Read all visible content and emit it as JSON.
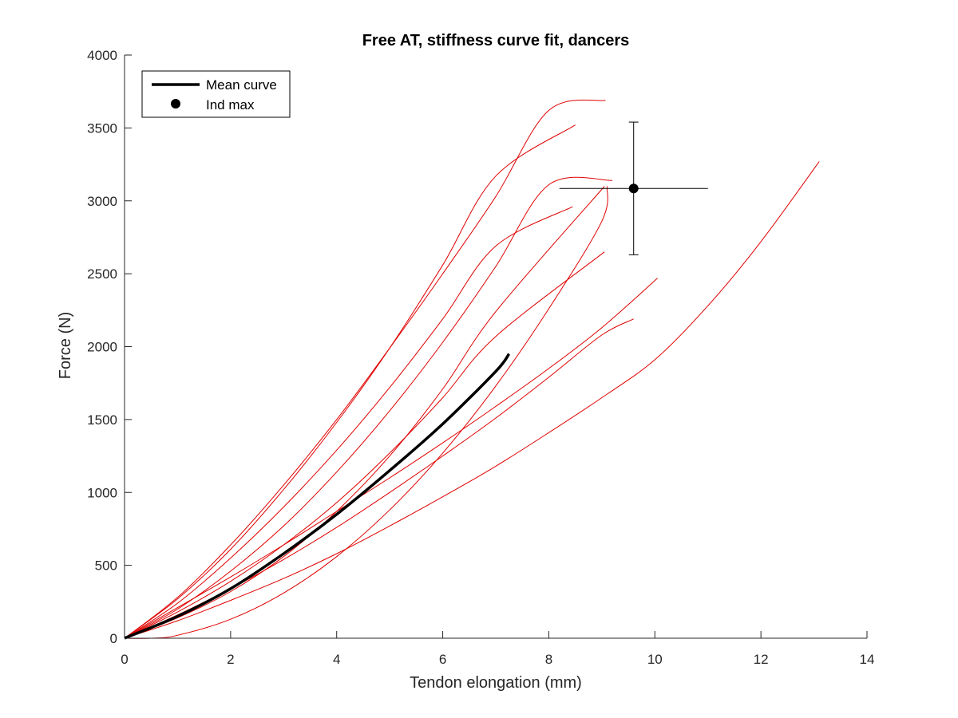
{
  "chart_data": {
    "type": "line",
    "title": "Free AT, stiffness curve fit, dancers",
    "xlabel": "Tendon elongation (mm)",
    "ylabel": "Force (N)",
    "xlim": [
      0,
      14
    ],
    "ylim": [
      0,
      4000
    ],
    "xticks": [
      "0",
      "2",
      "4",
      "6",
      "8",
      "10",
      "12",
      "14"
    ],
    "yticks": [
      "0",
      "500",
      "1000",
      "1500",
      "2000",
      "2500",
      "3000",
      "3500",
      "4000"
    ],
    "grid": false,
    "legend": {
      "placement": "top-left",
      "entries": [
        "Mean curve",
        "Ind max"
      ]
    },
    "colors": {
      "individual": "#e00000",
      "mean": "#000000",
      "errorbar": "#000000"
    },
    "series": [
      {
        "style": "individual",
        "points": [
          [
            0,
            0
          ],
          [
            1,
            280
          ],
          [
            2,
            640
          ],
          [
            3,
            1050
          ],
          [
            4,
            1500
          ],
          [
            5,
            1990
          ],
          [
            6,
            2500
          ],
          [
            7,
            3030
          ],
          [
            8,
            3620
          ],
          [
            9.07,
            3690
          ]
        ]
      },
      {
        "style": "individual",
        "points": [
          [
            0,
            0
          ],
          [
            1,
            270
          ],
          [
            2,
            610
          ],
          [
            3,
            1020
          ],
          [
            4,
            1480
          ],
          [
            5,
            1990
          ],
          [
            6,
            2560
          ],
          [
            7,
            3170
          ],
          [
            8.5,
            3520
          ]
        ]
      },
      {
        "style": "individual",
        "points": [
          [
            0,
            0
          ],
          [
            1,
            240
          ],
          [
            2,
            550
          ],
          [
            3,
            900
          ],
          [
            4,
            1290
          ],
          [
            5,
            1720
          ],
          [
            6,
            2190
          ],
          [
            7,
            2690
          ],
          [
            8.45,
            2960
          ]
        ]
      },
      {
        "style": "individual",
        "points": [
          [
            0,
            0
          ],
          [
            1,
            200
          ],
          [
            2,
            460
          ],
          [
            3,
            770
          ],
          [
            4,
            1140
          ],
          [
            5,
            1560
          ],
          [
            6,
            2030
          ],
          [
            7,
            2550
          ],
          [
            8,
            3110
          ],
          [
            9.2,
            3140
          ]
        ]
      },
      {
        "style": "individual",
        "points": [
          [
            0,
            0
          ],
          [
            1,
            140
          ],
          [
            2,
            320
          ],
          [
            3,
            560
          ],
          [
            4,
            870
          ],
          [
            5,
            1250
          ],
          [
            6,
            1710
          ],
          [
            7,
            2240
          ],
          [
            9.05,
            3100
          ]
        ]
      },
      {
        "style": "individual",
        "points": [
          [
            0,
            0
          ],
          [
            1,
            180
          ],
          [
            2,
            390
          ],
          [
            3,
            640
          ],
          [
            4,
            930
          ],
          [
            5,
            1270
          ],
          [
            6,
            1650
          ],
          [
            7,
            2070
          ],
          [
            9.05,
            2650
          ]
        ]
      },
      {
        "style": "individual",
        "points": [
          [
            0,
            0
          ],
          [
            1,
            210
          ],
          [
            2,
            420
          ],
          [
            3,
            640
          ],
          [
            4,
            870
          ],
          [
            5,
            1100
          ],
          [
            6,
            1340
          ],
          [
            7,
            1590
          ],
          [
            8,
            1850
          ],
          [
            9,
            2130
          ],
          [
            10.05,
            2470
          ]
        ]
      },
      {
        "style": "individual",
        "points": [
          [
            0,
            0
          ],
          [
            1,
            160
          ],
          [
            2,
            340
          ],
          [
            3,
            540
          ],
          [
            4,
            760
          ],
          [
            5,
            1000
          ],
          [
            6,
            1250
          ],
          [
            7,
            1510
          ],
          [
            8,
            1790
          ],
          [
            9,
            2080
          ],
          [
            9.6,
            2190
          ]
        ]
      },
      {
        "style": "individual",
        "points": [
          [
            0,
            0
          ],
          [
            1,
            120
          ],
          [
            2,
            260
          ],
          [
            3,
            410
          ],
          [
            4,
            580
          ],
          [
            5,
            770
          ],
          [
            6,
            970
          ],
          [
            7,
            1180
          ],
          [
            8,
            1410
          ],
          [
            9,
            1650
          ],
          [
            10,
            1910
          ],
          [
            11,
            2280
          ],
          [
            12,
            2720
          ],
          [
            13.1,
            3270
          ]
        ]
      },
      {
        "style": "individual",
        "points": [
          [
            0,
            0
          ],
          [
            0.5,
            0
          ],
          [
            1,
            20
          ],
          [
            2,
            130
          ],
          [
            3,
            310
          ],
          [
            4,
            560
          ],
          [
            5,
            880
          ],
          [
            6,
            1270
          ],
          [
            7,
            1730
          ],
          [
            8,
            2260
          ],
          [
            9,
            2860
          ],
          [
            9.1,
            3100
          ]
        ]
      },
      {
        "style": "mean",
        "name": "Mean curve",
        "points": [
          [
            0,
            0
          ],
          [
            1,
            150
          ],
          [
            2,
            340
          ],
          [
            3,
            580
          ],
          [
            4,
            850
          ],
          [
            5,
            1150
          ],
          [
            6,
            1470
          ],
          [
            7,
            1830
          ],
          [
            7.25,
            1950
          ]
        ]
      }
    ],
    "ind_max": {
      "name": "Ind max",
      "x": 9.6,
      "y": 3085,
      "x_err": [
        8.2,
        11.0
      ],
      "y_err": [
        2630,
        3540
      ]
    }
  }
}
